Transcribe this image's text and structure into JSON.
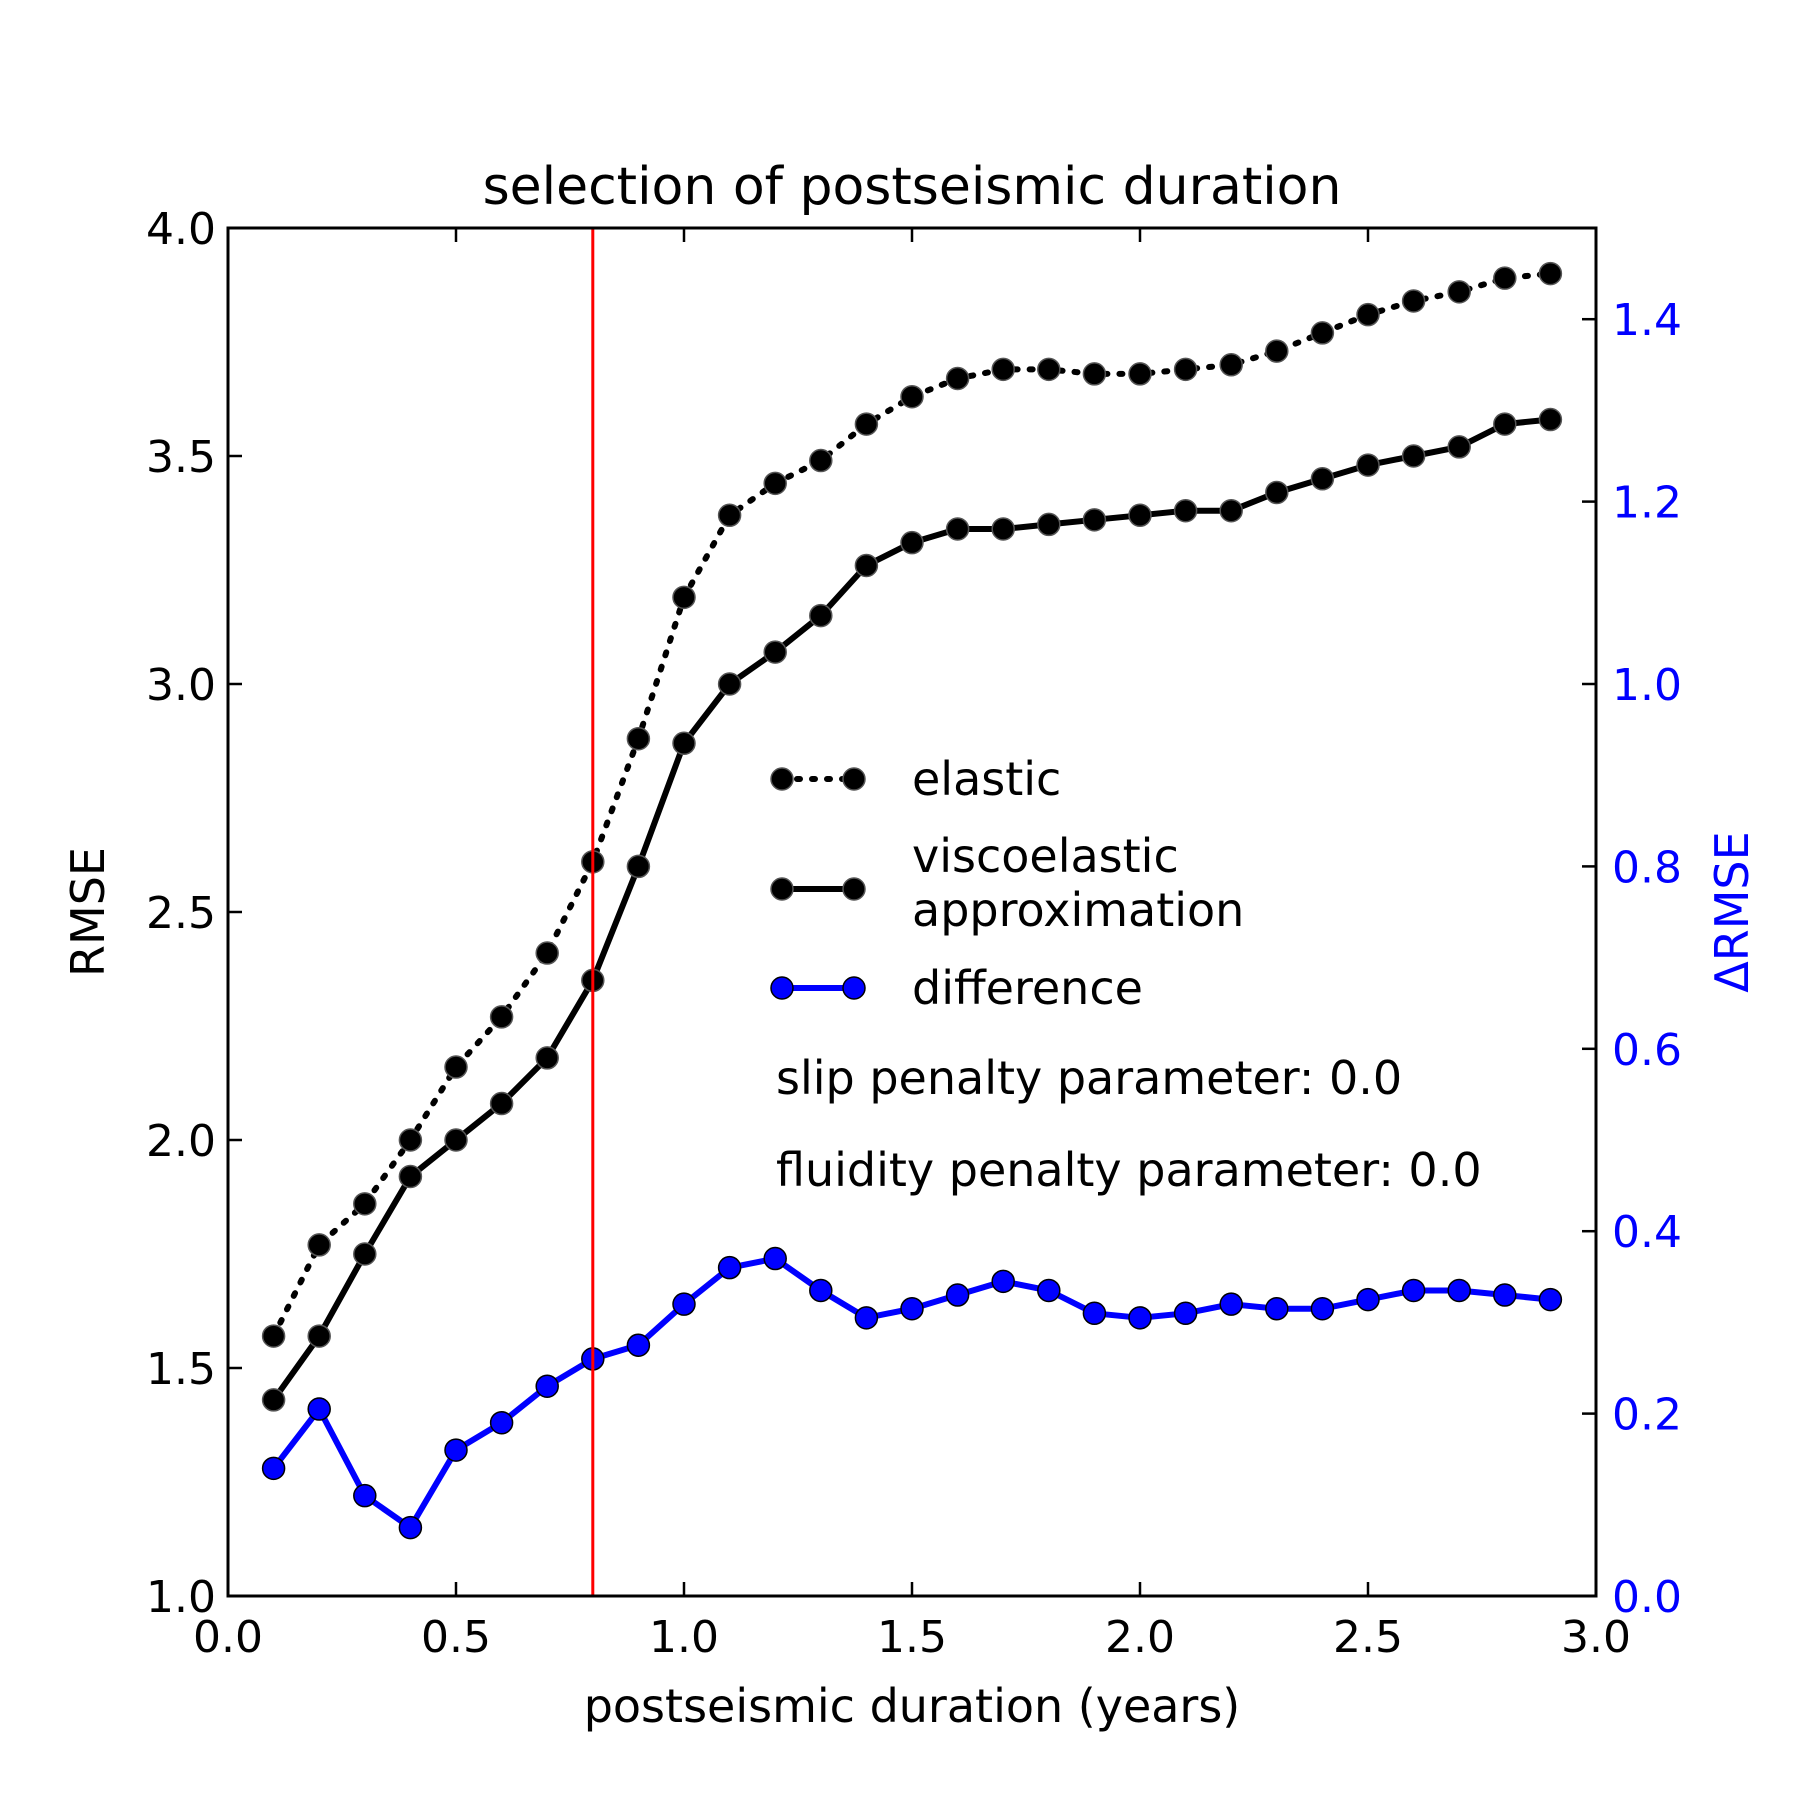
{
  "chart_data": {
    "type": "line",
    "title": "selection of postseismic duration",
    "xlabel": "postseismic duration (years)",
    "ylabel": "RMSE",
    "y2label": "ΔRMSE",
    "xlim": [
      0.0,
      3.0
    ],
    "ylim": [
      1.0,
      4.0
    ],
    "y2lim": [
      0.0,
      1.5
    ],
    "grid": false,
    "legend_position": "center-right",
    "xticks": [
      "0.0",
      "0.5",
      "1.0",
      "1.5",
      "2.0",
      "2.5",
      "3.0"
    ],
    "yticks": [
      "1.0",
      "1.5",
      "2.0",
      "2.5",
      "3.0",
      "3.5",
      "4.0"
    ],
    "y2ticks": [
      "0.0",
      "0.2",
      "0.4",
      "0.6",
      "0.8",
      "1.0",
      "1.2",
      "1.4"
    ],
    "vline": {
      "x": 0.8,
      "color": "#ff0000"
    },
    "x": [
      0.1,
      0.2,
      0.3,
      0.4,
      0.5,
      0.6,
      0.7,
      0.8,
      0.9,
      1.0,
      1.1,
      1.2,
      1.3,
      1.4,
      1.5,
      1.6,
      1.7,
      1.8,
      1.9,
      2.0,
      2.1,
      2.2,
      2.3,
      2.4,
      2.5,
      2.6,
      2.7,
      2.8,
      2.9
    ],
    "series": [
      {
        "name": "elastic",
        "axis": "left",
        "style": "dotted",
        "color": "#000000",
        "values": [
          1.57,
          1.77,
          1.86,
          2.0,
          2.16,
          2.27,
          2.41,
          2.61,
          2.88,
          3.19,
          3.37,
          3.44,
          3.49,
          3.57,
          3.63,
          3.67,
          3.69,
          3.69,
          3.68,
          3.68,
          3.69,
          3.7,
          3.73,
          3.77,
          3.81,
          3.84,
          3.86,
          3.89,
          3.9
        ]
      },
      {
        "name": "viscoelastic\napproximation",
        "axis": "left",
        "style": "solid",
        "color": "#000000",
        "values": [
          1.43,
          1.57,
          1.75,
          1.92,
          2.0,
          2.08,
          2.18,
          2.35,
          2.6,
          2.87,
          3.0,
          3.07,
          3.15,
          3.26,
          3.31,
          3.34,
          3.34,
          3.35,
          3.36,
          3.37,
          3.38,
          3.38,
          3.42,
          3.45,
          3.48,
          3.5,
          3.52,
          3.57,
          3.58
        ]
      },
      {
        "name": "difference",
        "axis": "right",
        "style": "solid",
        "color": "#0000ff",
        "values": [
          0.14,
          0.205,
          0.11,
          0.075,
          0.16,
          0.19,
          0.23,
          0.26,
          0.275,
          0.32,
          0.36,
          0.37,
          0.335,
          0.305,
          0.315,
          0.33,
          0.345,
          0.335,
          0.31,
          0.305,
          0.31,
          0.32,
          0.315,
          0.315,
          0.325,
          0.335,
          0.335,
          0.33,
          0.325
        ]
      }
    ],
    "annotations": [
      "slip penalty parameter: 0.0",
      "fluidity penalty parameter: 0.0"
    ]
  }
}
